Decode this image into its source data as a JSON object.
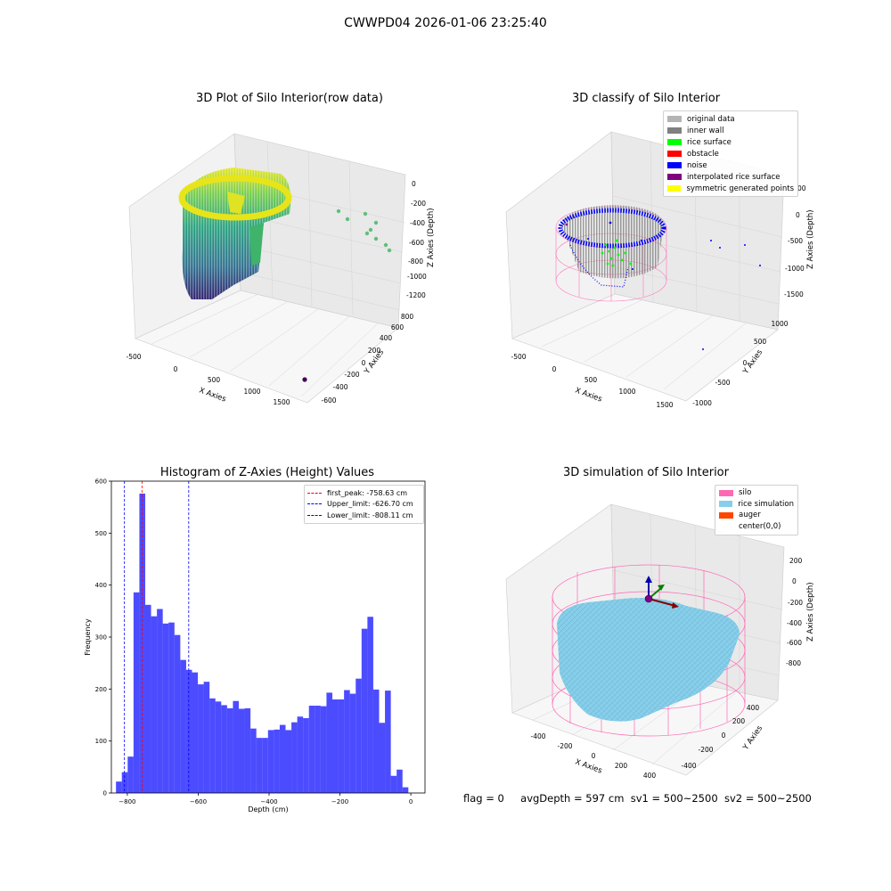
{
  "suptitle": "CWWPD04 2026-01-06 23:25:40",
  "panels": {
    "raw": {
      "title": "3D Plot of Silo Interior(row data)",
      "xlabel": "X Axies",
      "ylabel": "Y Axies",
      "zlabel": "Z Axies (Depth)",
      "xticks": [
        "-500",
        "0",
        "500",
        "1000",
        "1500"
      ],
      "yticks": [
        "-600",
        "-400",
        "-200",
        "0",
        "200",
        "400",
        "600",
        "800"
      ],
      "zticks": [
        "0",
        "-200",
        "-400",
        "-600",
        "-800",
        "-1000",
        "-1200"
      ]
    },
    "classify": {
      "title": "3D classify of Silo Interior",
      "xlabel": "X Axies",
      "ylabel": "Y Axies",
      "zlabel": "Z Axies (Depth)",
      "xticks": [
        "-500",
        "0",
        "500",
        "1000",
        "1500"
      ],
      "yticks": [
        "-1000",
        "-500",
        "0",
        "500",
        "1000"
      ],
      "zticks": [
        "0",
        "-500",
        "-1000",
        "-1500"
      ],
      "zticks_partial": [
        "00"
      ],
      "legend": [
        {
          "label": "original data",
          "color": "#b4b4b4"
        },
        {
          "label": "inner wall",
          "color": "#808080"
        },
        {
          "label": "rice surface",
          "color": "#00ff00"
        },
        {
          "label": "obstacle",
          "color": "#ff0000"
        },
        {
          "label": "noise",
          "color": "#0000ff"
        },
        {
          "label": "interpolated rice surface",
          "color": "#800080"
        },
        {
          "label": "symmetric generated points",
          "color": "#ffff00"
        }
      ]
    },
    "simulation": {
      "title": "3D simulation of Silo Interior",
      "xlabel": "X Axies",
      "ylabel": "Y Axies",
      "zlabel": "Z Axies (Depth)",
      "xticks": [
        "-400",
        "-200",
        "0",
        "200",
        "400"
      ],
      "yticks": [
        "-400",
        "-200",
        "0",
        "200",
        "400"
      ],
      "zticks": [
        "200",
        "0",
        "-200",
        "-400",
        "-600",
        "-800"
      ],
      "legend": [
        {
          "label": "silo",
          "color": "#ff69b4"
        },
        {
          "label": "rice simulation",
          "color": "#87ceeb"
        },
        {
          "label": "auger",
          "color": "#ff4500"
        },
        {
          "label": "center(0,0)",
          "color": ""
        }
      ]
    }
  },
  "chart_data": {
    "type": "bar",
    "title": "Histogram of Z-Axies (Height) Values",
    "xlabel": "Depth (cm)",
    "ylabel": "Frequency",
    "xlim": [
      -845,
      40
    ],
    "ylim": [
      0,
      600
    ],
    "xticks": [
      -800,
      -600,
      -400,
      -200,
      0
    ],
    "xtick_labels": [
      "−800",
      "−600",
      "−400",
      "−200",
      "0"
    ],
    "yticks": [
      0,
      100,
      200,
      300,
      400,
      500,
      600
    ],
    "bar_color": "#0000ff",
    "bin_start": -832,
    "bin_width": 16.5,
    "values": [
      22,
      40,
      70,
      386,
      576,
      362,
      340,
      354,
      326,
      328,
      304,
      256,
      237,
      232,
      209,
      214,
      182,
      176,
      169,
      163,
      177,
      162,
      163,
      124,
      106,
      106,
      121,
      122,
      131,
      121,
      136,
      147,
      144,
      168,
      168,
      167,
      193,
      180,
      180,
      198,
      191,
      220,
      316,
      339,
      199,
      135,
      197,
      33,
      45,
      11
    ],
    "vlines": [
      {
        "label": "first_peak: -758.63 cm",
        "x": -758.63,
        "color": "#ff0000"
      },
      {
        "label": "Upper_limit: -626.70 cm",
        "x": -626.7,
        "color": "#0000ff"
      },
      {
        "label": "Lower_limit: -808.11 cm",
        "x": -808.11,
        "color": "#0000ff"
      }
    ],
    "legend_position": "upper-right"
  },
  "status": {
    "flag": "flag = 0",
    "avg_depth": "avgDepth = 597 cm",
    "sv1": "sv1 = 500~2500",
    "sv2": "sv2 = 500~2500"
  }
}
